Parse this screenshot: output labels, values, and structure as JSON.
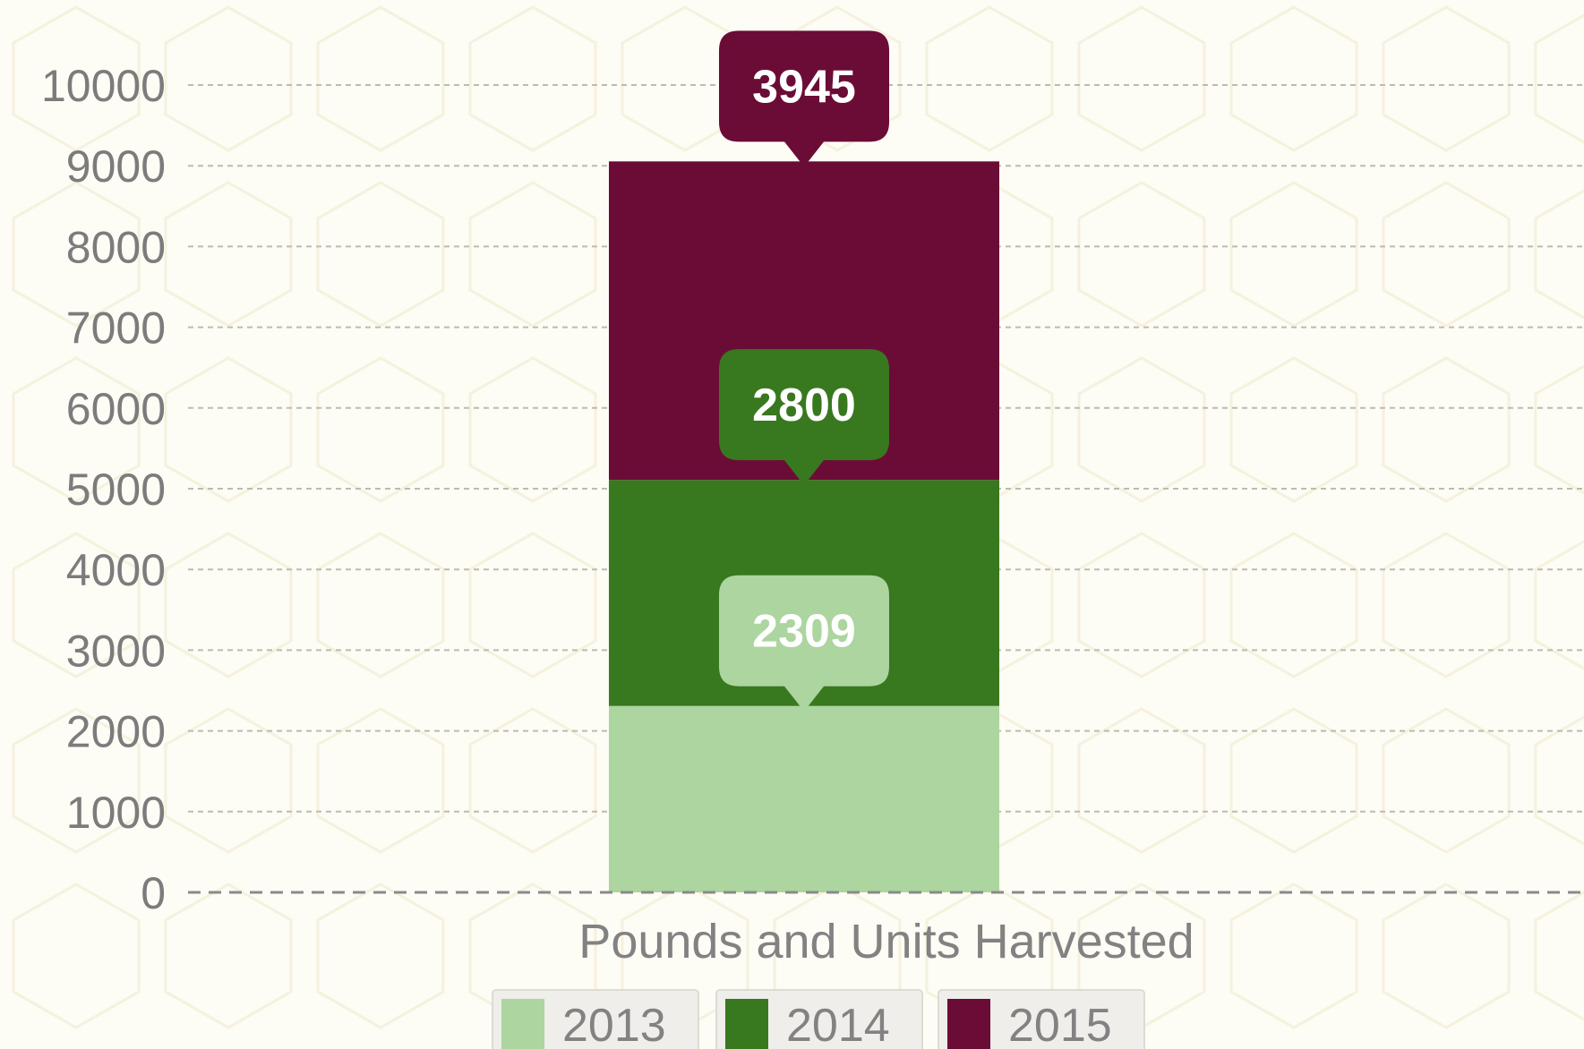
{
  "chart_data": {
    "type": "bar",
    "stacked": true,
    "categories": [
      "Pounds and Units Harvested"
    ],
    "series": [
      {
        "name": "2013",
        "values": [
          2309
        ],
        "color": "#acd59f"
      },
      {
        "name": "2014",
        "values": [
          2800
        ],
        "color": "#38781f"
      },
      {
        "name": "2015",
        "values": [
          3945
        ],
        "color": "#6b0c37"
      }
    ],
    "ylim": [
      0,
      10000
    ],
    "yticks": [
      0,
      1000,
      2000,
      3000,
      4000,
      5000,
      6000,
      7000,
      8000,
      9000,
      10000
    ],
    "grid": true,
    "legend_position": "bottom",
    "title": "",
    "xlabel": "",
    "ylabel": ""
  }
}
